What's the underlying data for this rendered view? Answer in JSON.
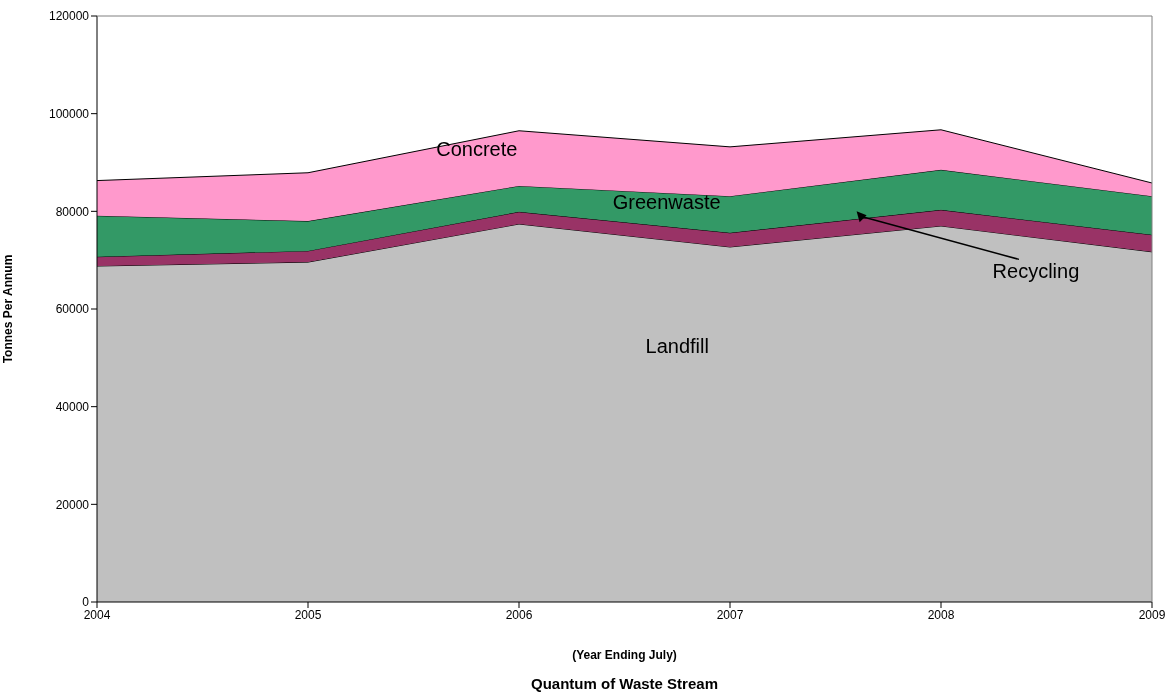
{
  "chart_data": {
    "type": "area",
    "title": "Quantum of Waste Stream",
    "xlabel": "(Year Ending July)",
    "ylabel": "Tonnes Per Annum",
    "x": [
      2004,
      2005,
      2006,
      2007,
      2008,
      2009
    ],
    "stacked": true,
    "series": [
      {
        "name": "Landfill",
        "color": "#c0c0c0",
        "values": [
          68800,
          69600,
          77400,
          72700,
          77000,
          71700
        ]
      },
      {
        "name": "Recycling",
        "color": "#993366",
        "values": [
          1900,
          2300,
          2500,
          2900,
          3300,
          3500
        ]
      },
      {
        "name": "Greenwaste",
        "color": "#339966",
        "values": [
          8400,
          6100,
          5300,
          7500,
          8200,
          7900
        ]
      },
      {
        "name": "Concrete",
        "color": "#ff99cc",
        "values": [
          7200,
          9900,
          11300,
          10100,
          8200,
          2700
        ]
      }
    ],
    "xlim": [
      2004,
      2009
    ],
    "xticks": [
      2004,
      2005,
      2006,
      2007,
      2008,
      2009
    ],
    "ylim": [
      0,
      120000
    ],
    "yticks": [
      0,
      20000,
      40000,
      60000,
      80000,
      100000,
      120000
    ],
    "legend": false
  }
}
